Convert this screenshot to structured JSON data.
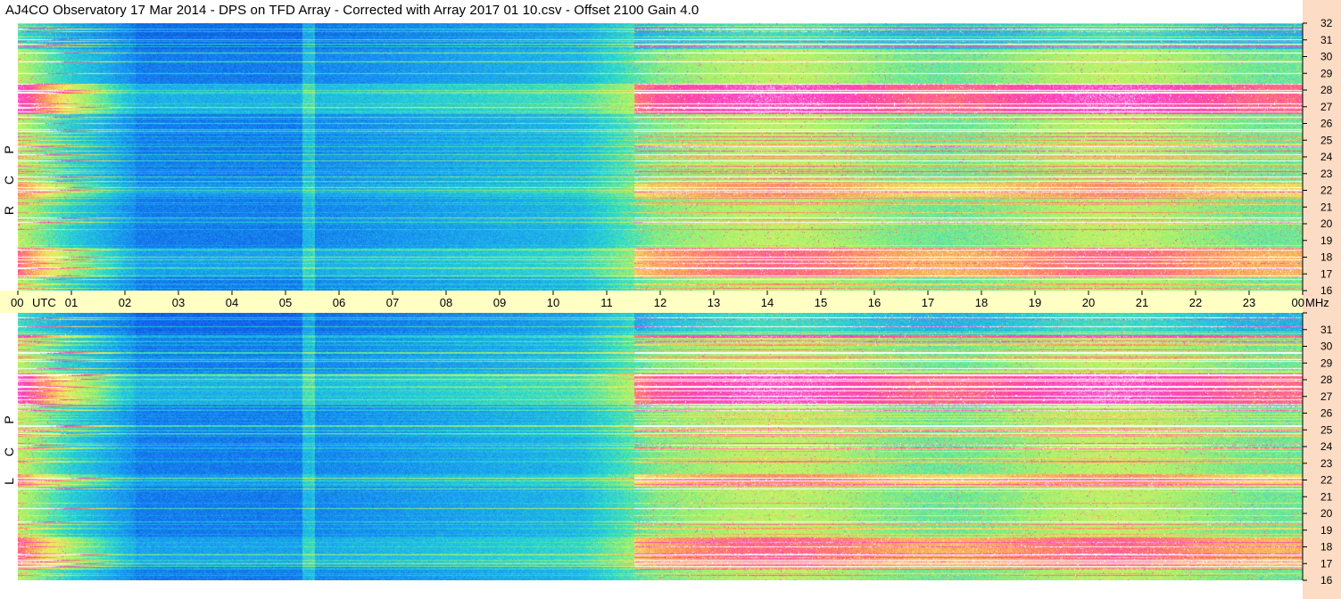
{
  "title": "AJ4CO Observatory  17 Mar 2014  -  DPS on TFD Array  -  Corrected with Array 2017 01 10.csv  -  Offset 2100  Gain 4.0",
  "panels": [
    {
      "id": "rcp",
      "letters": [
        "P",
        "C",
        "R"
      ]
    },
    {
      "id": "lcp",
      "letters": [
        "P",
        "C",
        "L"
      ]
    }
  ],
  "utc_label": "UTC",
  "mhz_label": "MHz",
  "chart_data": {
    "type": "heatmap",
    "x_ticks": [
      "00",
      "01",
      "02",
      "03",
      "04",
      "05",
      "06",
      "07",
      "08",
      "09",
      "10",
      "11",
      "12",
      "13",
      "14",
      "15",
      "16",
      "17",
      "18",
      "19",
      "20",
      "21",
      "22",
      "23",
      "00"
    ],
    "xlim": [
      0,
      24
    ],
    "y_ticks": [
      "32",
      "31",
      "30",
      "29",
      "28",
      "27",
      "26",
      "25",
      "24",
      "23",
      "22",
      "21",
      "20",
      "19",
      "18",
      "17",
      "16"
    ],
    "ylim": [
      16,
      32
    ],
    "series": [
      {
        "name": "R C P"
      },
      {
        "name": "L C P"
      }
    ],
    "colormap": [
      "#0b3cd0",
      "#1060e8",
      "#1aa0f0",
      "#2ad8d0",
      "#9af070",
      "#f0f060",
      "#ff9060",
      "#ff30c0",
      "#ffffff"
    ]
  }
}
